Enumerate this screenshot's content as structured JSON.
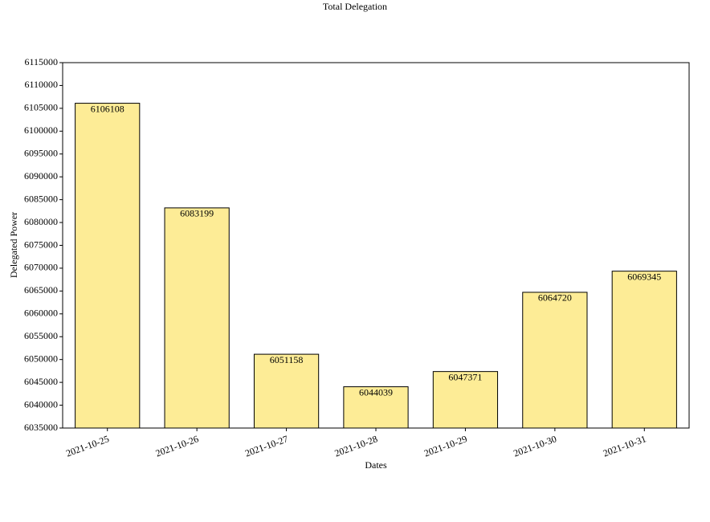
{
  "chart_data": {
    "type": "bar",
    "title": "Total Delegation",
    "x_label": "Dates",
    "y_label": "Delegated Power",
    "categories": [
      "2021-10-25",
      "2021-10-26",
      "2021-10-27",
      "2021-10-28",
      "2021-10-29",
      "2021-10-30",
      "2021-10-31"
    ],
    "values": [
      6106108,
      6083199,
      6051158,
      6044039,
      6047371,
      6064720,
      6069345
    ],
    "color": "#fdec96",
    "ylim": [
      6035000,
      6115000
    ],
    "yticks": [
      6035000,
      6040000,
      6045000,
      6050000,
      6055000,
      6060000,
      6065000,
      6070000,
      6075000,
      6080000,
      6085000,
      6090000,
      6095000,
      6100000,
      6105000,
      6110000,
      6115000
    ],
    "grid": false
  }
}
